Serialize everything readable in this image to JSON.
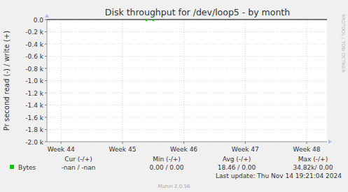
{
  "chart_data": {
    "type": "line",
    "title": "Disk throughput for /dev/loop5 - by month",
    "y_label": "Pr second read (-) / write (+)",
    "watermark": "RRDTOOL / TOBI OETIKER",
    "footer": "Munin 2.0.56",
    "last_update": "Last update: Thu Nov 14 19:21:04 2024",
    "xlim": [
      43.77,
      48.33
    ],
    "xticks": [
      {
        "value": 44,
        "label": "Week 44"
      },
      {
        "value": 45,
        "label": "Week 45"
      },
      {
        "value": 46,
        "label": "Week 46"
      },
      {
        "value": 47,
        "label": "Week 47"
      },
      {
        "value": 48,
        "label": "Week 48"
      }
    ],
    "ylim": [
      -2000,
      0
    ],
    "yticks": [
      {
        "value": 0,
        "label": "0.0"
      },
      {
        "value": -200,
        "label": "-0.2 k"
      },
      {
        "value": -400,
        "label": "-0.4 k"
      },
      {
        "value": -600,
        "label": "-0.6 k"
      },
      {
        "value": -800,
        "label": "-0.8 k"
      },
      {
        "value": -1000,
        "label": "-1.0 k"
      },
      {
        "value": -1200,
        "label": "-1.2 k"
      },
      {
        "value": -1400,
        "label": "-1.4 k"
      },
      {
        "value": -1600,
        "label": "-1.6 k"
      },
      {
        "value": -1800,
        "label": "-1.8 k"
      },
      {
        "value": -2000,
        "label": "-2.0 k"
      }
    ],
    "grid": true,
    "series": [
      {
        "name": "Bytes",
        "color": "#00cc00",
        "marker": "circle",
        "x": [
          45.39,
          45.45,
          45.5
        ],
        "values": [
          -8,
          null,
          -8
        ]
      }
    ],
    "stats": {
      "headers": [
        "Cur (-/+)",
        "Min (-/+)",
        "Avg (-/+)",
        "Max (-/+)"
      ],
      "rows": [
        [
          "-nan /  -nan",
          "0.00 /  0.00",
          "18.46 /  0.00",
          "34.82k/  0.00"
        ]
      ]
    }
  }
}
